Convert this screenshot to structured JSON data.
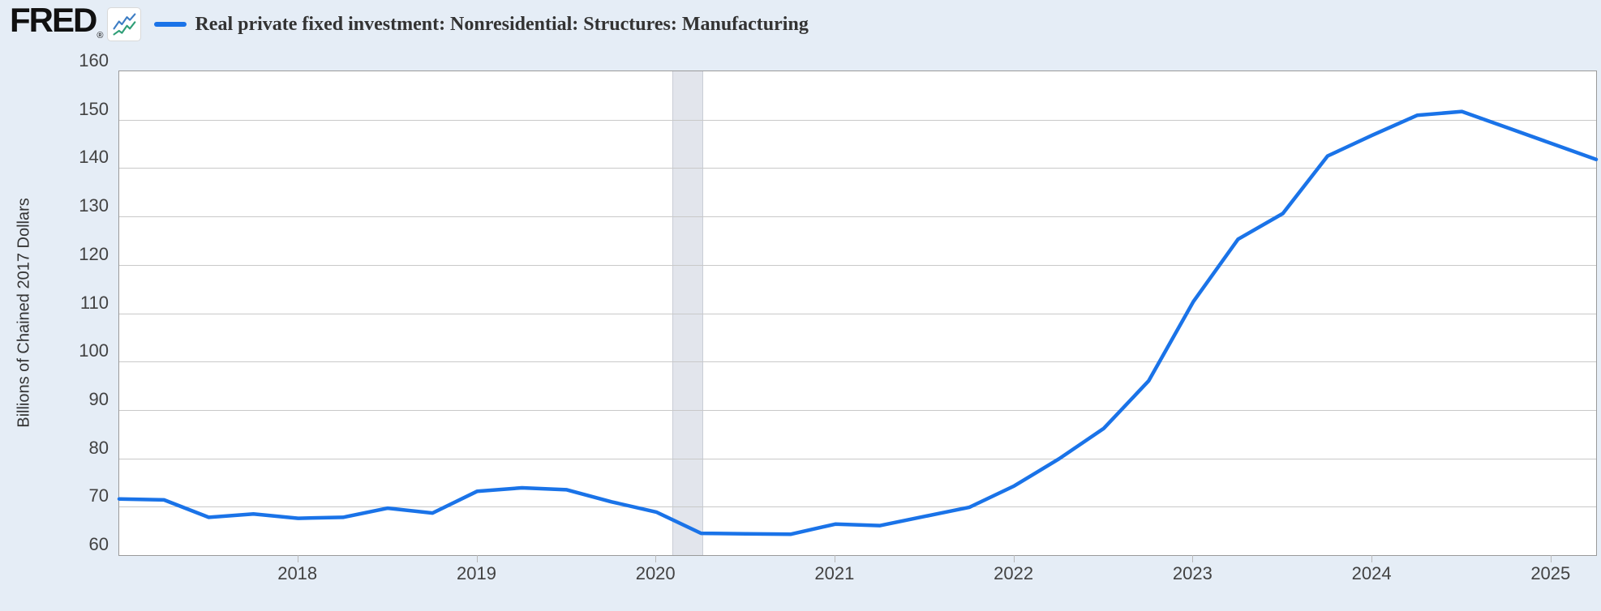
{
  "header": {
    "logo_text": "FRED",
    "logo_registered": "®",
    "legend_label": "Real private fixed investment: Nonresidential: Structures: Manufacturing"
  },
  "icons": {
    "sparkline": "fred-sparkline-icon"
  },
  "colors": {
    "page_background": "#e5edf6",
    "plot_background": "#ffffff",
    "plot_border": "#9a9a9a",
    "gridline": "#c9c9c9",
    "line": "#1a73e8",
    "recession_band": "#e2e5ec",
    "recession_band_edge": "#c9cdd6",
    "axis_text": "#424242",
    "legend_text": "#333333",
    "tick_mark": "#b9b9b9",
    "icon_blue": "#3d7dc4",
    "icon_green": "#2f9e77"
  },
  "chart_data": {
    "type": "line",
    "title": "",
    "ylabel": "Billions of Chained 2017 Dollars",
    "xlabel": "",
    "frequency": "Quarterly",
    "legend_position": "top-left",
    "grid": "horizontal",
    "xlim": [
      2017.0,
      2025.25
    ],
    "ylim": [
      60,
      160
    ],
    "y_ticks": [
      60,
      70,
      80,
      90,
      100,
      110,
      120,
      130,
      140,
      150,
      160
    ],
    "x_tick_years": [
      2018,
      2019,
      2020,
      2021,
      2022,
      2023,
      2024,
      2025
    ],
    "recession_band": {
      "x_start": 2020.09,
      "x_end": 2020.253
    },
    "series": [
      {
        "name": "Real private fixed investment: Nonresidential: Structures: Manufacturing",
        "color": "#1a73e8",
        "x": [
          2017.0,
          2017.25,
          2017.5,
          2017.75,
          2018.0,
          2018.25,
          2018.5,
          2018.75,
          2019.0,
          2019.25,
          2019.5,
          2019.75,
          2020.0,
          2020.25,
          2020.5,
          2020.75,
          2021.0,
          2021.25,
          2021.5,
          2021.75,
          2022.0,
          2022.25,
          2022.5,
          2022.75,
          2023.0,
          2023.25,
          2023.5,
          2023.75,
          2024.0,
          2024.25,
          2024.5,
          2024.75,
          2025.0,
          2025.25
        ],
        "values": [
          71.6,
          71.4,
          67.8,
          68.5,
          67.6,
          67.8,
          69.7,
          68.7,
          73.2,
          73.9,
          73.5,
          71.0,
          68.9,
          64.5,
          64.4,
          64.3,
          66.4,
          66.1,
          68.0,
          69.9,
          74.3,
          79.9,
          86.2,
          96.0,
          112.4,
          125.3,
          130.6,
          142.5,
          146.8,
          150.9,
          151.7,
          148.4,
          145.1,
          141.8
        ]
      }
    ]
  }
}
